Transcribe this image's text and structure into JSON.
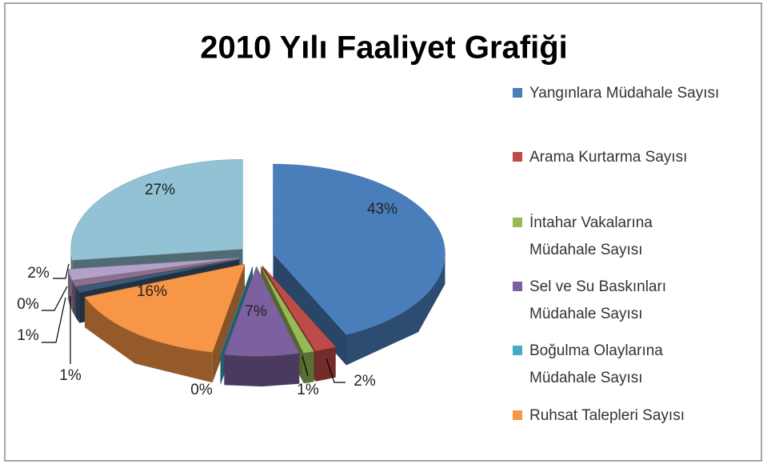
{
  "chart_data": {
    "type": "pie3d",
    "title": "2010 Yılı Faaliyet Grafiği",
    "categories": [
      "Yangınlara Müdahale Sayısı",
      "Arama Kurtarma Sayısı",
      "İntahar Vakalarına Müdahale Sayısı",
      "Sel ve Su Baskınları Müdahale Sayısı",
      "Boğulma Olaylarına Müdahale Sayısı",
      "Ruhsat Talepleri Sayısı",
      null,
      null,
      null,
      null,
      null
    ],
    "values": [
      43,
      2,
      1,
      7,
      0,
      16,
      1,
      1,
      0,
      2,
      27
    ],
    "value_labels": [
      "43%",
      "2%",
      "1%",
      "7%",
      "0%",
      "16%",
      "1%",
      "1%",
      "0%",
      "2%",
      "27%"
    ],
    "colors": [
      "#4a7ebb",
      "#be4b48",
      "#98b954",
      "#7d60a0",
      "#46aac5",
      "#f79646",
      "#3d5b79",
      "#8f6f8f",
      "#c9a0a0",
      "#b1a0c7",
      "#93c2d5"
    ],
    "legend": "right"
  }
}
